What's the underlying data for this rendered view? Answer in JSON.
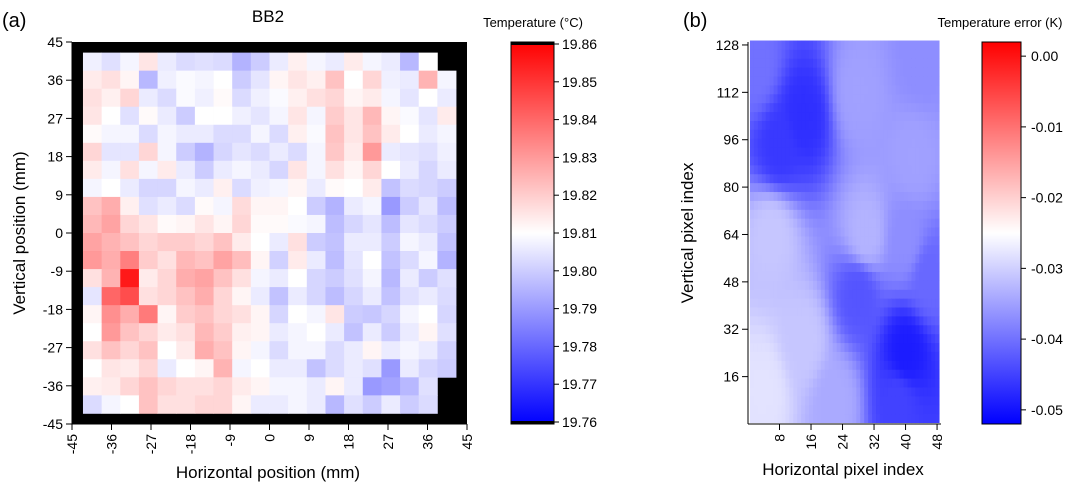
{
  "chart_data": [
    {
      "panel_label": "(a)",
      "type": "heatmap",
      "title": "BB2",
      "xlabel": "Horizontal position (mm)",
      "ylabel": "Vertical position (mm)",
      "x_ticks": [
        "-45",
        "-36",
        "-27",
        "-18",
        "-9",
        "0",
        "9",
        "18",
        "27",
        "36",
        "45"
      ],
      "y_ticks": [
        "45",
        "36",
        "27",
        "18",
        "9",
        "0",
        "-9",
        "-18",
        "-27",
        "-36",
        "-45"
      ],
      "xlim": [
        -45,
        45
      ],
      "ylim": [
        -45,
        45
      ],
      "grid_extent_mm": [
        -42.5,
        42.5
      ],
      "background": "#000000",
      "colorbar": {
        "title": "Temperature (°C)",
        "range": [
          19.76,
          19.86
        ],
        "ticks": [
          "19.86",
          "19.85",
          "19.84",
          "19.83",
          "19.82",
          "19.81",
          "19.80",
          "19.79",
          "19.78",
          "19.77",
          "19.76"
        ],
        "colors": {
          "low": "#0000ff",
          "mid": "#ffffff",
          "high": "#ff0000"
        }
      },
      "values": [
        [
          19.807,
          19.804,
          19.808,
          19.815,
          19.806,
          19.803,
          19.804,
          19.803,
          19.795,
          19.8,
          19.806,
          19.813,
          19.808,
          19.806,
          19.814,
          19.808,
          19.806,
          19.796,
          19.81,
          null
        ],
        [
          19.814,
          19.816,
          19.812,
          19.796,
          19.807,
          19.809,
          19.808,
          19.81,
          19.8,
          19.805,
          19.812,
          19.815,
          19.813,
          19.822,
          19.81,
          19.818,
          19.807,
          19.806,
          19.825,
          19.808
        ],
        [
          19.816,
          19.813,
          19.818,
          19.806,
          19.803,
          19.809,
          19.807,
          19.811,
          19.803,
          19.807,
          19.809,
          19.813,
          19.816,
          19.818,
          19.812,
          19.814,
          19.808,
          19.805,
          19.81,
          19.806
        ],
        [
          19.815,
          19.81,
          19.804,
          19.811,
          19.806,
          19.8,
          19.81,
          19.81,
          19.807,
          19.805,
          19.808,
          19.815,
          19.808,
          19.82,
          19.815,
          19.824,
          19.812,
          19.809,
          19.805,
          19.814
        ],
        [
          19.811,
          19.808,
          19.808,
          19.803,
          19.808,
          19.806,
          19.806,
          19.803,
          19.803,
          19.808,
          19.803,
          19.813,
          19.809,
          19.822,
          19.815,
          19.822,
          19.814,
          19.81,
          19.806,
          19.808
        ],
        [
          19.818,
          19.805,
          19.805,
          19.818,
          19.808,
          19.8,
          19.795,
          19.802,
          19.805,
          19.803,
          19.806,
          19.803,
          19.808,
          19.821,
          19.814,
          19.83,
          19.806,
          19.805,
          19.804,
          19.807
        ],
        [
          19.814,
          19.808,
          19.816,
          19.808,
          19.814,
          19.806,
          19.8,
          19.806,
          19.808,
          19.806,
          19.802,
          19.815,
          19.808,
          19.816,
          19.812,
          19.818,
          19.81,
          19.806,
          19.802,
          19.806
        ],
        [
          19.808,
          19.81,
          19.806,
          19.802,
          19.802,
          19.808,
          19.806,
          19.813,
          19.803,
          19.807,
          19.808,
          19.812,
          19.806,
          19.811,
          19.81,
          19.814,
          19.798,
          19.803,
          19.802,
          19.8
        ],
        [
          19.822,
          19.826,
          19.813,
          19.804,
          19.806,
          19.803,
          19.811,
          19.808,
          19.817,
          19.812,
          19.812,
          19.81,
          19.8,
          19.795,
          19.806,
          19.808,
          19.79,
          19.8,
          19.805,
          19.797
        ],
        [
          19.824,
          19.828,
          19.818,
          19.815,
          19.811,
          19.812,
          19.815,
          19.812,
          19.818,
          19.811,
          19.811,
          19.809,
          19.808,
          19.797,
          19.802,
          19.805,
          19.797,
          19.805,
          19.803,
          19.8
        ],
        [
          19.828,
          19.825,
          19.822,
          19.818,
          19.82,
          19.82,
          19.818,
          19.822,
          19.814,
          19.81,
          19.806,
          19.816,
          19.8,
          19.798,
          19.806,
          19.806,
          19.8,
          19.808,
          19.806,
          19.798
        ],
        [
          19.83,
          19.826,
          19.835,
          19.82,
          19.816,
          19.824,
          19.822,
          19.828,
          19.823,
          19.812,
          19.801,
          19.814,
          19.806,
          19.797,
          19.805,
          19.81,
          19.798,
          19.803,
          19.808,
          19.795
        ],
        [
          19.816,
          19.825,
          19.855,
          19.814,
          19.818,
          19.826,
          19.828,
          19.822,
          19.816,
          19.808,
          19.806,
          19.81,
          19.802,
          19.8,
          19.804,
          19.808,
          19.796,
          19.806,
          19.8,
          19.804
        ],
        [
          19.805,
          19.84,
          19.845,
          19.816,
          19.818,
          19.822,
          19.826,
          19.818,
          19.812,
          19.806,
          19.798,
          19.806,
          19.802,
          19.797,
          19.802,
          19.806,
          19.798,
          19.804,
          19.806,
          19.803
        ],
        [
          19.812,
          19.832,
          19.826,
          19.836,
          19.812,
          19.82,
          19.822,
          19.818,
          19.816,
          19.812,
          19.802,
          19.81,
          19.808,
          19.815,
          19.8,
          19.799,
          19.802,
          19.808,
          19.81,
          19.802
        ],
        [
          19.81,
          19.83,
          19.822,
          19.818,
          19.814,
          19.816,
          19.824,
          19.82,
          19.813,
          19.812,
          19.806,
          19.808,
          19.81,
          19.806,
          19.798,
          19.806,
          19.8,
          19.806,
          19.812,
          19.804
        ],
        [
          19.816,
          19.822,
          19.818,
          19.822,
          19.81,
          19.814,
          19.826,
          19.822,
          19.812,
          19.808,
          19.803,
          19.808,
          19.808,
          19.803,
          19.806,
          19.812,
          19.806,
          19.808,
          19.806,
          19.801
        ],
        [
          19.81,
          19.815,
          19.814,
          19.818,
          19.806,
          19.81,
          19.812,
          19.825,
          19.808,
          19.81,
          19.806,
          19.806,
          19.798,
          19.803,
          19.806,
          19.804,
          19.79,
          19.806,
          19.802,
          19.8
        ],
        [
          19.813,
          19.814,
          19.818,
          19.822,
          19.818,
          19.816,
          19.816,
          19.818,
          19.814,
          19.812,
          19.808,
          19.808,
          19.806,
          19.812,
          19.806,
          19.79,
          19.792,
          19.796,
          19.804,
          null
        ],
        [
          19.803,
          19.808,
          19.81,
          19.822,
          19.816,
          19.816,
          19.818,
          19.818,
          19.812,
          19.806,
          19.806,
          19.808,
          19.806,
          19.796,
          19.804,
          19.8,
          19.806,
          19.8,
          19.803,
          null
        ]
      ]
    },
    {
      "panel_label": "(b)",
      "type": "heatmap",
      "title": "",
      "xlabel": "Horizontal pixel index",
      "ylabel": "Vertical pixel index",
      "x_ticks": [
        "8",
        "16",
        "24",
        "32",
        "40",
        "48"
      ],
      "y_ticks": [
        "128",
        "112",
        "96",
        "80",
        "64",
        "48",
        "32",
        "16"
      ],
      "xlim": [
        0,
        49
      ],
      "ylim": [
        0,
        129
      ],
      "colorbar": {
        "title": "Temperature error (K)",
        "range": [
          -0.052,
          0.002
        ],
        "ticks": [
          "0.00",
          "-0.01",
          "-0.02",
          "-0.03",
          "-0.04",
          "-0.05"
        ],
        "colors": {
          "low": "#0000ff",
          "mid": "#ffffff",
          "high": "#ff0000"
        }
      },
      "field_samples": [
        {
          "x": 2,
          "y": 120,
          "value": -0.04
        },
        {
          "x": 14,
          "y": 104,
          "value": -0.047
        },
        {
          "x": 8,
          "y": 94,
          "value": -0.046
        },
        {
          "x": 28,
          "y": 112,
          "value": -0.035
        },
        {
          "x": 44,
          "y": 122,
          "value": -0.037
        },
        {
          "x": 42,
          "y": 90,
          "value": -0.035
        },
        {
          "x": 6,
          "y": 64,
          "value": -0.031
        },
        {
          "x": 30,
          "y": 64,
          "value": -0.033
        },
        {
          "x": 40,
          "y": 62,
          "value": -0.037
        },
        {
          "x": 28,
          "y": 44,
          "value": -0.043
        },
        {
          "x": 40,
          "y": 24,
          "value": -0.049
        },
        {
          "x": 38,
          "y": 8,
          "value": -0.045
        },
        {
          "x": 4,
          "y": 12,
          "value": -0.028
        },
        {
          "x": 14,
          "y": 28,
          "value": -0.031
        },
        {
          "x": 22,
          "y": 8,
          "value": -0.034
        },
        {
          "x": 46,
          "y": 50,
          "value": -0.041
        }
      ]
    }
  ]
}
